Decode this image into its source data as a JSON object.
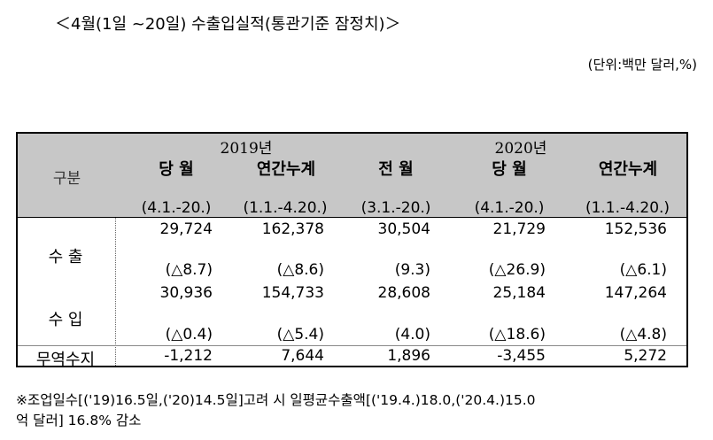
{
  "title": "＜4월(1일 ~20일) 수출입실적(통관기준 잠정치)＞",
  "unit": "(단위:백만 달러,%)",
  "header": {
    "category": "구분",
    "year_2019": "2019년",
    "year_2020": "2020년",
    "columns": [
      {
        "label": "당 월",
        "period": "(4.1.-20.)"
      },
      {
        "label": "연간누계",
        "period": "(1.1.-4.20.)"
      },
      {
        "label": "전 월",
        "period": "(3.1.-20.)"
      },
      {
        "label": "당 월",
        "period": "(4.1.-20.)"
      },
      {
        "label": "연간누계",
        "period": "(1.1.-4.20.)"
      }
    ]
  },
  "rows": [
    {
      "label": "수 출",
      "values": [
        "29,724",
        "162,378",
        "30,504",
        "21,729",
        "152,536"
      ],
      "changes": [
        "(△8.7)",
        "(△8.6)",
        "(9.3)",
        "(△26.9)",
        "(△6.1)"
      ]
    },
    {
      "label": "수 입",
      "values": [
        "30,936",
        "154,733",
        "28,608",
        "25,184",
        "147,264"
      ],
      "changes": [
        "(△0.4)",
        "(△5.4)",
        "(4.0)",
        "(△18.6)",
        "(△4.8)"
      ]
    },
    {
      "label": "무역수지",
      "values": [
        "-1,212",
        "7,644",
        "1,896",
        "-3,455",
        "5,272"
      ]
    }
  ],
  "footnote": {
    "line1": "※조업일수[('19)16.5일,('20)14.5일]고려 시 일평균수출액[('19.4.)18.0,('20.4.)15.0",
    "line2": "억 달러] 16.8% 감소"
  }
}
